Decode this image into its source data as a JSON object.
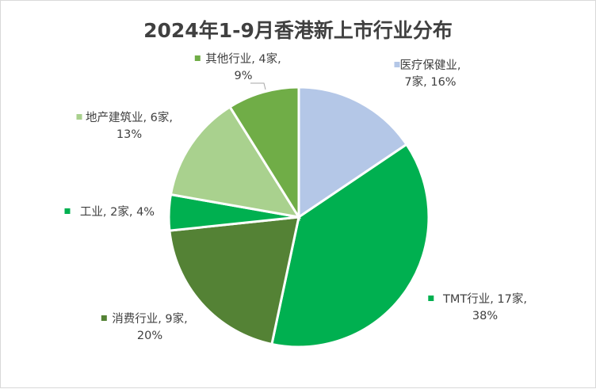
{
  "chart_data": {
    "type": "pie",
    "title": "2024年1-9月香港新上市行业分布",
    "slices": [
      {
        "name": "医疗保健业",
        "count": 7,
        "percent": 16,
        "line1": "医疗保健业,",
        "line2": "7家, 16%",
        "color": "#B4C7E7"
      },
      {
        "name": "TMT行业",
        "count": 17,
        "percent": 38,
        "line1": "TMT行业, 17家,",
        "line2": "38%",
        "color": "#00B050"
      },
      {
        "name": "消费行业",
        "count": 9,
        "percent": 20,
        "line1": "消费行业, 9家,",
        "line2": "20%",
        "color": "#548235"
      },
      {
        "name": "工业",
        "count": 2,
        "percent": 4,
        "line1": "工业, 2家, 4%",
        "line2": "",
        "color": "#00B050"
      },
      {
        "name": "地产建筑业",
        "count": 6,
        "percent": 13,
        "line1": "地产建筑业, 6家,",
        "line2": "13%",
        "color": "#A9D18E"
      },
      {
        "name": "其他行业",
        "count": 4,
        "percent": 9,
        "line1": "其他行业, 4家,",
        "line2": "9%",
        "color": "#70AD47"
      }
    ],
    "legend": "none (labels beside slices)"
  }
}
